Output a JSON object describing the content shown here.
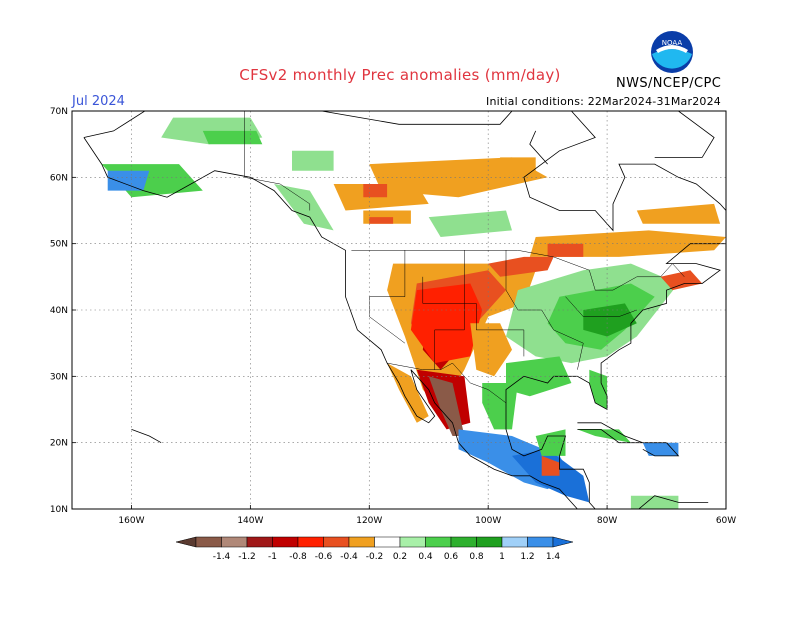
{
  "title": "CFSv2 monthly Prec anomalies (mm/day)",
  "month": "Jul 2024",
  "initial_conditions": "Initial conditions: 22Mar2024-31Mar2024",
  "agency": "NWS/NCEP/CPC",
  "logo_text": "NOAA",
  "map": {
    "projection": "equirectangular",
    "lon_range": [
      -170,
      -60
    ],
    "lat_range": [
      10,
      70
    ],
    "lat_ticks": [
      {
        "value": 70,
        "label": "70N"
      },
      {
        "value": 60,
        "label": "60N"
      },
      {
        "value": 50,
        "label": "50N"
      },
      {
        "value": 40,
        "label": "40N"
      },
      {
        "value": 30,
        "label": "30N"
      },
      {
        "value": 20,
        "label": "20N"
      },
      {
        "value": 10,
        "label": "10N"
      }
    ],
    "lon_ticks": [
      {
        "value": -160,
        "label": "160W"
      },
      {
        "value": -140,
        "label": "140W"
      },
      {
        "value": -120,
        "label": "120W"
      },
      {
        "value": -100,
        "label": "100W"
      },
      {
        "value": -80,
        "label": "80W"
      },
      {
        "value": -60,
        "label": "60W"
      }
    ],
    "grid": true,
    "anomaly_regions": [
      {
        "name": "alaska-north-wet",
        "color": "#8fe08f",
        "pts": [
          [
            -153,
            69
          ],
          [
            -140,
            69
          ],
          [
            -138,
            66
          ],
          [
            -147,
            65
          ],
          [
            -155,
            66
          ]
        ]
      },
      {
        "name": "alaska-central-wet",
        "color": "#4ccf4c",
        "pts": [
          [
            -148,
            67
          ],
          [
            -139,
            67
          ],
          [
            -138,
            65
          ],
          [
            -147,
            65
          ]
        ]
      },
      {
        "name": "yukon-wet",
        "color": "#8fe08f",
        "pts": [
          [
            -133,
            64
          ],
          [
            -126,
            64
          ],
          [
            -126,
            61
          ],
          [
            -133,
            61
          ]
        ]
      },
      {
        "name": "alaska-se-wet",
        "color": "#4ccf4c",
        "pts": [
          [
            -165,
            62
          ],
          [
            -152,
            62
          ],
          [
            -148,
            58
          ],
          [
            -160,
            57
          ]
        ]
      },
      {
        "name": "alaska-sw-wet",
        "color": "#3a8fe8",
        "pts": [
          [
            -164,
            61
          ],
          [
            -157,
            61
          ],
          [
            -158,
            58
          ],
          [
            -164,
            58
          ]
        ]
      },
      {
        "name": "bc-wet",
        "color": "#8fe08f",
        "pts": [
          [
            -136,
            59
          ],
          [
            -130,
            58
          ],
          [
            -126,
            52
          ],
          [
            -131,
            53
          ]
        ]
      },
      {
        "name": "nw-canada-dry",
        "color": "#f0a020",
        "pts": [
          [
            -120,
            62
          ],
          [
            -96,
            63
          ],
          [
            -90,
            60
          ],
          [
            -105,
            57
          ],
          [
            -118,
            58
          ]
        ]
      },
      {
        "name": "nw-canada-dry2",
        "color": "#f0a020",
        "pts": [
          [
            -126,
            59
          ],
          [
            -112,
            59
          ],
          [
            -110,
            56
          ],
          [
            -124,
            55
          ]
        ]
      },
      {
        "name": "nwt-dry-core",
        "color": "#e85020",
        "pts": [
          [
            -121,
            59
          ],
          [
            -117,
            59
          ],
          [
            -117,
            57
          ],
          [
            -121,
            57
          ]
        ]
      },
      {
        "name": "hudson-west-dry",
        "color": "#f0a020",
        "pts": [
          [
            -98,
            63
          ],
          [
            -92,
            63
          ],
          [
            -92,
            60
          ],
          [
            -98,
            60
          ]
        ]
      },
      {
        "name": "sask-dry",
        "color": "#f0a020",
        "pts": [
          [
            -121,
            55
          ],
          [
            -113,
            55
          ],
          [
            -113,
            53
          ],
          [
            -121,
            53
          ]
        ]
      },
      {
        "name": "sask-dry-core",
        "color": "#e85020",
        "pts": [
          [
            -120,
            54
          ],
          [
            -116,
            54
          ],
          [
            -116,
            53
          ],
          [
            -120,
            53
          ]
        ]
      },
      {
        "name": "prairie-wet",
        "color": "#8fe08f",
        "pts": [
          [
            -110,
            54
          ],
          [
            -97,
            55
          ],
          [
            -96,
            52
          ],
          [
            -108,
            51
          ]
        ]
      },
      {
        "name": "ontario-dry",
        "color": "#f0a020",
        "pts": [
          [
            -92,
            51
          ],
          [
            -73,
            52
          ],
          [
            -60,
            51
          ],
          [
            -62,
            49
          ],
          [
            -78,
            48
          ],
          [
            -93,
            48
          ]
        ]
      },
      {
        "name": "ontario-dry-core",
        "color": "#e85020",
        "pts": [
          [
            -90,
            50
          ],
          [
            -84,
            50
          ],
          [
            -84,
            48
          ],
          [
            -90,
            48
          ]
        ]
      },
      {
        "name": "quebec-dry",
        "color": "#f0a020",
        "pts": [
          [
            -75,
            55
          ],
          [
            -62,
            56
          ],
          [
            -61,
            53
          ],
          [
            -74,
            53
          ]
        ]
      },
      {
        "name": "great-plains-dry",
        "color": "#f0a020",
        "pts": [
          [
            -116,
            47
          ],
          [
            -98,
            47
          ],
          [
            -92,
            46
          ],
          [
            -94,
            41
          ],
          [
            -100,
            39
          ],
          [
            -104,
            31
          ],
          [
            -108,
            25
          ],
          [
            -111,
            28
          ],
          [
            -114,
            36
          ],
          [
            -117,
            43
          ]
        ]
      },
      {
        "name": "rockies-dry-core",
        "color": "#e85020",
        "pts": [
          [
            -112,
            44
          ],
          [
            -100,
            46
          ],
          [
            -97,
            43
          ],
          [
            -102,
            38
          ],
          [
            -106,
            33
          ],
          [
            -110,
            33
          ],
          [
            -113,
            38
          ]
        ]
      },
      {
        "name": "colorado-dry",
        "color": "#c00000",
        "pts": [
          [
            -110,
            41
          ],
          [
            -104,
            42
          ],
          [
            -104,
            35
          ],
          [
            -108,
            31
          ],
          [
            -111,
            34
          ]
        ]
      },
      {
        "name": "four-corners-dry",
        "color": "#ff2000",
        "pts": [
          [
            -112,
            43
          ],
          [
            -103,
            44
          ],
          [
            -101,
            40
          ],
          [
            -103,
            33
          ],
          [
            -109,
            32
          ],
          [
            -113,
            37
          ]
        ]
      },
      {
        "name": "sierra-madre-dry",
        "color": "#c00000",
        "pts": [
          [
            -112,
            31
          ],
          [
            -104,
            30
          ],
          [
            -103,
            23
          ],
          [
            -107,
            22
          ],
          [
            -110,
            26
          ]
        ]
      },
      {
        "name": "mexico-very-dry",
        "color": "#8a5a48",
        "pts": [
          [
            -110,
            30
          ],
          [
            -106,
            29
          ],
          [
            -104,
            21
          ],
          [
            -106,
            21
          ],
          [
            -108,
            25
          ]
        ]
      },
      {
        "name": "great-lakes-dry",
        "color": "#e85020",
        "pts": [
          [
            -100,
            47
          ],
          [
            -94,
            48
          ],
          [
            -89,
            48
          ],
          [
            -90,
            46
          ],
          [
            -98,
            45
          ]
        ]
      },
      {
        "name": "texas-dry",
        "color": "#f0a020",
        "pts": [
          [
            -103,
            38
          ],
          [
            -98,
            38
          ],
          [
            -96,
            34
          ],
          [
            -99,
            30
          ],
          [
            -102,
            31
          ]
        ]
      },
      {
        "name": "midwest-wet",
        "color": "#8fe08f",
        "pts": [
          [
            -95,
            43
          ],
          [
            -84,
            46
          ],
          [
            -76,
            47
          ],
          [
            -68,
            44
          ],
          [
            -75,
            36
          ],
          [
            -80,
            33
          ],
          [
            -86,
            32
          ],
          [
            -92,
            33
          ],
          [
            -97,
            36
          ]
        ]
      },
      {
        "name": "east-wet",
        "color": "#4ccf4c",
        "pts": [
          [
            -88,
            42
          ],
          [
            -76,
            44
          ],
          [
            -72,
            42
          ],
          [
            -77,
            37
          ],
          [
            -81,
            34
          ],
          [
            -87,
            35
          ],
          [
            -90,
            38
          ]
        ]
      },
      {
        "name": "appalachian-wet",
        "color": "#1fa01f",
        "pts": [
          [
            -84,
            40
          ],
          [
            -77,
            41
          ],
          [
            -75,
            38
          ],
          [
            -80,
            36
          ],
          [
            -84,
            37
          ]
        ]
      },
      {
        "name": "gulf-wet",
        "color": "#4ccf4c",
        "pts": [
          [
            -97,
            32
          ],
          [
            -88,
            33
          ],
          [
            -86,
            29
          ],
          [
            -93,
            27
          ],
          [
            -97,
            28
          ]
        ]
      },
      {
        "name": "florida-wet",
        "color": "#4ccf4c",
        "pts": [
          [
            -83,
            31
          ],
          [
            -80,
            30
          ],
          [
            -80,
            25
          ],
          [
            -82,
            26
          ],
          [
            -83,
            29
          ]
        ]
      },
      {
        "name": "new-england-dry",
        "color": "#e85020",
        "pts": [
          [
            -71,
            45
          ],
          [
            -66,
            46
          ],
          [
            -64,
            44
          ],
          [
            -69,
            43
          ]
        ]
      },
      {
        "name": "texas-coast-wet",
        "color": "#4ccf4c",
        "pts": [
          [
            -101,
            29
          ],
          [
            -95,
            29
          ],
          [
            -96,
            22
          ],
          [
            -99,
            22
          ],
          [
            -101,
            26
          ]
        ]
      },
      {
        "name": "mexico-south-wet",
        "color": "#3a8fe8",
        "pts": [
          [
            -105,
            22
          ],
          [
            -96,
            21
          ],
          [
            -88,
            18
          ],
          [
            -86,
            15
          ],
          [
            -90,
            13
          ],
          [
            -94,
            14
          ],
          [
            -100,
            17
          ],
          [
            -105,
            19
          ]
        ]
      },
      {
        "name": "central-am-wet",
        "color": "#1a70d8",
        "pts": [
          [
            -96,
            18
          ],
          [
            -90,
            19
          ],
          [
            -84,
            15
          ],
          [
            -83,
            11
          ],
          [
            -87,
            12
          ],
          [
            -92,
            14
          ]
        ]
      },
      {
        "name": "yucatan-wet",
        "color": "#4ccf4c",
        "pts": [
          [
            -92,
            21
          ],
          [
            -87,
            22
          ],
          [
            -87,
            18
          ],
          [
            -91,
            18
          ]
        ]
      },
      {
        "name": "central-am-dry",
        "color": "#e85020",
        "pts": [
          [
            -91,
            18
          ],
          [
            -88,
            17
          ],
          [
            -88,
            15
          ],
          [
            -91,
            15
          ]
        ]
      },
      {
        "name": "cuba-wet",
        "color": "#4ccf4c",
        "pts": [
          [
            -85,
            22
          ],
          [
            -78,
            22
          ],
          [
            -76,
            20
          ],
          [
            -82,
            21
          ]
        ]
      },
      {
        "name": "hispaniola-wet",
        "color": "#3a8fe8",
        "pts": [
          [
            -74,
            20
          ],
          [
            -68,
            20
          ],
          [
            -68,
            18
          ],
          [
            -73,
            18
          ]
        ]
      },
      {
        "name": "venezuela-wet",
        "color": "#8fe08f",
        "pts": [
          [
            -76,
            12
          ],
          [
            -68,
            12
          ],
          [
            -68,
            10
          ],
          [
            -76,
            10
          ]
        ]
      },
      {
        "name": "baja-dry",
        "color": "#f0a020",
        "pts": [
          [
            -117,
            32
          ],
          [
            -113,
            30
          ],
          [
            -110,
            24
          ],
          [
            -112,
            23
          ],
          [
            -115,
            28
          ]
        ]
      }
    ]
  },
  "colorbar": {
    "labels": [
      "-1.4",
      "-1.2",
      "-1",
      "-0.8",
      "-0.6",
      "-0.4",
      "-0.2",
      "0.2",
      "0.4",
      "0.6",
      "0.8",
      "1",
      "1.2",
      "1.4"
    ],
    "colors": [
      "#5a3a30",
      "#8a5a48",
      "#b08878",
      "#a01818",
      "#c00000",
      "#ff2000",
      "#e85020",
      "#f0a020",
      "#ffffff",
      "#a8f0a8",
      "#4ccf4c",
      "#2eb02e",
      "#1fa01f",
      "#a0d0f8",
      "#3a8fe8",
      "#1a70d8"
    ]
  }
}
